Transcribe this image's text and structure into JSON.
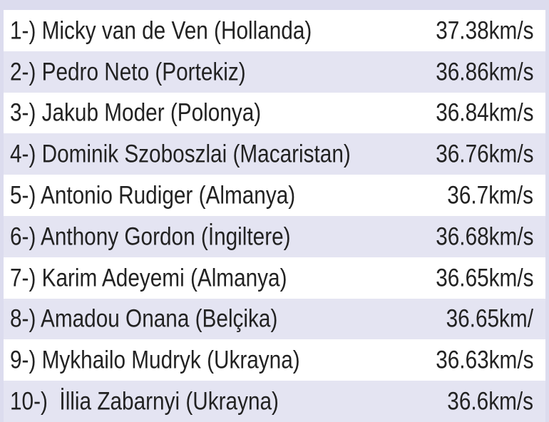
{
  "table": {
    "rows": [
      [
        "1-) Micky van de Ven (Hollanda)",
        "37.38km/s"
      ],
      [
        "2-) Pedro Neto (Portekiz)",
        "36.86km/s"
      ],
      [
        "3-) Jakub Moder (Polonya)",
        "36.84km/s"
      ],
      [
        "4-) Dominik Szoboszlai (Macaristan)",
        "36.76km/s"
      ],
      [
        "5-) Antonio Rudiger (Almanya)",
        "36.7km/s"
      ],
      [
        "6-) Anthony Gordon (İngiltere)",
        "36.68km/s"
      ],
      [
        "7-) Karim Adeyemi (Almanya)",
        "36.65km/s"
      ],
      [
        "8-) Amadou Onana (Belçika)",
        "36.65km/"
      ],
      [
        "9-) Mykhailo Mudryk (Ukrayna)",
        "36.63km/s"
      ],
      [
        "10-)  İllia Zabarnyi (Ukrayna)",
        "36.6km/s"
      ]
    ]
  }
}
